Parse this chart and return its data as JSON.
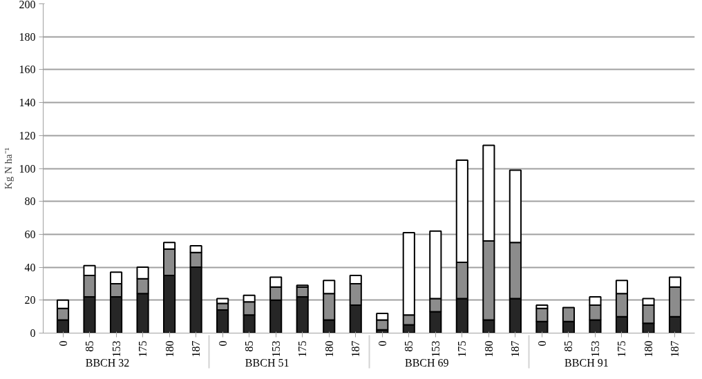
{
  "chart_data": {
    "type": "bar",
    "stacked": true,
    "ylabel": "Kg N ha⁻¹",
    "categories": [
      "0",
      "85",
      "153",
      "175",
      "180",
      "187",
      "0",
      "85",
      "153",
      "175",
      "180",
      "187",
      "0",
      "85",
      "153",
      "175",
      "180",
      "187",
      "0",
      "85",
      "153",
      "175",
      "180",
      "187"
    ],
    "annotations": [
      "BBCH 32",
      "BBCH 51",
      "BBCH 69",
      "BBCH 91"
    ],
    "series": [
      {
        "color": "#262626",
        "values": [
          8,
          22,
          22,
          24,
          35,
          40,
          14,
          11,
          20,
          22,
          8,
          17,
          2,
          5,
          13,
          21,
          8,
          21,
          7,
          7,
          8,
          10,
          6,
          10
        ]
      },
      {
        "color": "#8c8c8c",
        "values": [
          7,
          13,
          8,
          9,
          16,
          9,
          4,
          8,
          8,
          6,
          16,
          13,
          6,
          6,
          8,
          22,
          48,
          34,
          8,
          8.5,
          9,
          14,
          11,
          18
        ]
      },
      {
        "color": "#ffffff",
        "values": [
          5,
          6,
          7,
          7,
          4,
          4,
          3,
          4,
          6,
          1,
          8,
          5,
          4,
          50,
          41,
          62,
          58,
          44,
          2,
          null,
          5,
          8,
          4,
          6
        ]
      }
    ],
    "ylim": [
      0,
      200
    ],
    "yticks": [
      0,
      20,
      40,
      60,
      80,
      100,
      120,
      140,
      160,
      180,
      200
    ],
    "grid": "y"
  }
}
